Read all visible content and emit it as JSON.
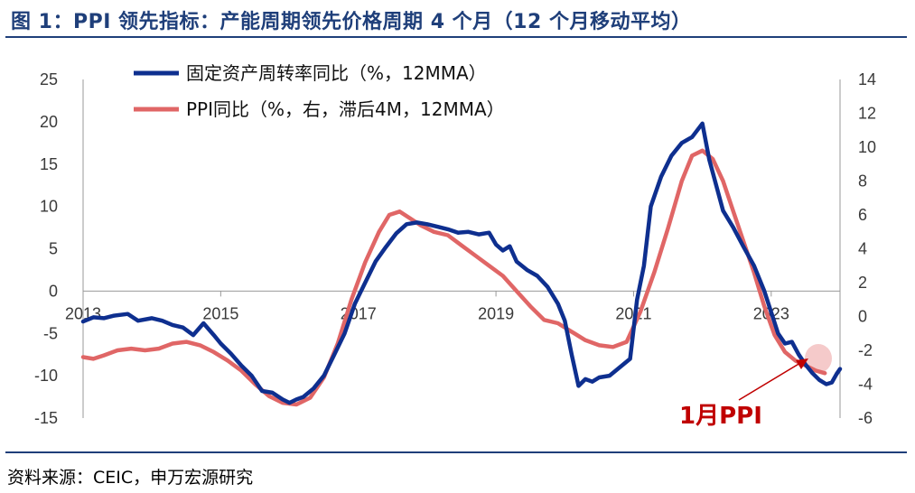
{
  "title": "图 1：PPI 领先指标：产能周期领先价格周期 4 个月（12 个月移动平均）",
  "source": "资料来源：CEIC，申万宏源研究",
  "colors": {
    "header": "#1f3f7a",
    "fai": "#0e2f8f",
    "ppi": "#e06666",
    "highlight": "#f2b8b8",
    "annotation": "#c00000"
  },
  "chart_data": {
    "type": "line",
    "x_ticks": [
      "2013",
      "2015",
      "2017",
      "2019",
      "2021",
      "2023"
    ],
    "y_left_ticks": [
      "25",
      "20",
      "15",
      "10",
      "5",
      "0",
      "-5",
      "-10",
      "-15"
    ],
    "y_right_ticks": [
      "14",
      "12",
      "10",
      "8",
      "6",
      "4",
      "2",
      "0",
      "-2",
      "-4",
      "-6"
    ],
    "ylim_left": [
      -15,
      25
    ],
    "ylim_right": [
      -6,
      14
    ],
    "xlim": [
      2013.0,
      2024.0
    ],
    "annotation": "1月PPI",
    "series": [
      {
        "name": "固定资产周转率同比（%，12MMA）",
        "axis": "left",
        "points": [
          [
            2013.0,
            -3.6
          ],
          [
            2013.15,
            -3.1
          ],
          [
            2013.3,
            -3.2
          ],
          [
            2013.45,
            -2.9
          ],
          [
            2013.65,
            -2.7
          ],
          [
            2013.8,
            -3.5
          ],
          [
            2014.0,
            -3.2
          ],
          [
            2014.15,
            -3.5
          ],
          [
            2014.3,
            -4.0
          ],
          [
            2014.45,
            -4.3
          ],
          [
            2014.6,
            -5.2
          ],
          [
            2014.75,
            -3.8
          ],
          [
            2014.9,
            -5.2
          ],
          [
            2015.0,
            -6.2
          ],
          [
            2015.15,
            -7.4
          ],
          [
            2015.3,
            -8.8
          ],
          [
            2015.45,
            -10.0
          ],
          [
            2015.6,
            -11.8
          ],
          [
            2015.75,
            -12.0
          ],
          [
            2015.9,
            -12.8
          ],
          [
            2016.0,
            -13.2
          ],
          [
            2016.1,
            -12.8
          ],
          [
            2016.2,
            -12.5
          ],
          [
            2016.35,
            -11.5
          ],
          [
            2016.5,
            -10.0
          ],
          [
            2016.65,
            -7.5
          ],
          [
            2016.8,
            -5.0
          ],
          [
            2016.95,
            -1.5
          ],
          [
            2017.1,
            1.0
          ],
          [
            2017.25,
            3.5
          ],
          [
            2017.4,
            5.2
          ],
          [
            2017.55,
            6.8
          ],
          [
            2017.7,
            7.9
          ],
          [
            2017.85,
            8.1
          ],
          [
            2018.0,
            7.9
          ],
          [
            2018.15,
            7.6
          ],
          [
            2018.3,
            7.3
          ],
          [
            2018.45,
            6.9
          ],
          [
            2018.6,
            7.0
          ],
          [
            2018.75,
            6.7
          ],
          [
            2018.9,
            6.9
          ],
          [
            2019.0,
            5.5
          ],
          [
            2019.1,
            4.8
          ],
          [
            2019.2,
            5.3
          ],
          [
            2019.3,
            3.5
          ],
          [
            2019.45,
            2.5
          ],
          [
            2019.6,
            1.8
          ],
          [
            2019.75,
            0.5
          ],
          [
            2019.9,
            -1.5
          ],
          [
            2020.0,
            -3.5
          ],
          [
            2020.1,
            -7.5
          ],
          [
            2020.2,
            -11.2
          ],
          [
            2020.3,
            -10.4
          ],
          [
            2020.4,
            -10.7
          ],
          [
            2020.5,
            -10.2
          ],
          [
            2020.65,
            -10.0
          ],
          [
            2020.8,
            -9.0
          ],
          [
            2020.95,
            -8.0
          ],
          [
            2021.05,
            -1.0
          ],
          [
            2021.15,
            3.0
          ],
          [
            2021.25,
            10.0
          ],
          [
            2021.4,
            13.5
          ],
          [
            2021.55,
            16.0
          ],
          [
            2021.7,
            17.5
          ],
          [
            2021.85,
            18.2
          ],
          [
            2022.0,
            19.8
          ],
          [
            2022.1,
            15.5
          ],
          [
            2022.2,
            12.5
          ],
          [
            2022.3,
            9.5
          ],
          [
            2022.45,
            7.5
          ],
          [
            2022.6,
            5.2
          ],
          [
            2022.75,
            3.0
          ],
          [
            2022.9,
            0.0
          ],
          [
            2023.0,
            -2.5
          ],
          [
            2023.1,
            -5.0
          ],
          [
            2023.2,
            -6.2
          ],
          [
            2023.3,
            -6.0
          ],
          [
            2023.4,
            -7.5
          ],
          [
            2023.5,
            -8.7
          ],
          [
            2023.6,
            -9.7
          ],
          [
            2023.7,
            -10.5
          ],
          [
            2023.8,
            -11.0
          ],
          [
            2023.88,
            -10.8
          ],
          [
            2023.95,
            -9.8
          ],
          [
            2024.0,
            -9.2
          ]
        ]
      },
      {
        "name": "PPI同比（%，右，滞后4M，12MMA）",
        "axis": "right",
        "points": [
          [
            2013.0,
            -2.4
          ],
          [
            2013.15,
            -2.5
          ],
          [
            2013.3,
            -2.3
          ],
          [
            2013.5,
            -2.0
          ],
          [
            2013.7,
            -1.9
          ],
          [
            2013.9,
            -2.0
          ],
          [
            2014.1,
            -1.9
          ],
          [
            2014.3,
            -1.6
          ],
          [
            2014.5,
            -1.5
          ],
          [
            2014.7,
            -1.7
          ],
          [
            2014.9,
            -2.1
          ],
          [
            2015.1,
            -2.6
          ],
          [
            2015.3,
            -3.2
          ],
          [
            2015.5,
            -4.0
          ],
          [
            2015.7,
            -4.7
          ],
          [
            2015.9,
            -5.1
          ],
          [
            2016.1,
            -5.2
          ],
          [
            2016.3,
            -4.8
          ],
          [
            2016.5,
            -3.6
          ],
          [
            2016.7,
            -1.6
          ],
          [
            2016.9,
            1.0
          ],
          [
            2017.1,
            3.2
          ],
          [
            2017.3,
            5.0
          ],
          [
            2017.45,
            6.0
          ],
          [
            2017.6,
            6.2
          ],
          [
            2017.75,
            5.8
          ],
          [
            2017.9,
            5.4
          ],
          [
            2018.1,
            5.0
          ],
          [
            2018.3,
            4.8
          ],
          [
            2018.5,
            4.2
          ],
          [
            2018.7,
            3.6
          ],
          [
            2018.9,
            3.0
          ],
          [
            2019.1,
            2.4
          ],
          [
            2019.3,
            1.5
          ],
          [
            2019.5,
            0.6
          ],
          [
            2019.7,
            -0.2
          ],
          [
            2019.9,
            -0.4
          ],
          [
            2020.1,
            -0.9
          ],
          [
            2020.3,
            -1.4
          ],
          [
            2020.5,
            -1.7
          ],
          [
            2020.7,
            -1.8
          ],
          [
            2020.9,
            -1.5
          ],
          [
            2021.1,
            0.3
          ],
          [
            2021.3,
            2.6
          ],
          [
            2021.5,
            5.2
          ],
          [
            2021.7,
            8.0
          ],
          [
            2021.85,
            9.5
          ],
          [
            2022.0,
            9.8
          ],
          [
            2022.15,
            9.3
          ],
          [
            2022.3,
            8.0
          ],
          [
            2022.45,
            6.2
          ],
          [
            2022.6,
            4.4
          ],
          [
            2022.75,
            2.6
          ],
          [
            2022.9,
            0.6
          ],
          [
            2023.05,
            -1.1
          ],
          [
            2023.2,
            -2.1
          ],
          [
            2023.35,
            -2.6
          ],
          [
            2023.5,
            -2.9
          ],
          [
            2023.65,
            -3.2
          ],
          [
            2023.78,
            -3.35
          ]
        ]
      }
    ]
  }
}
